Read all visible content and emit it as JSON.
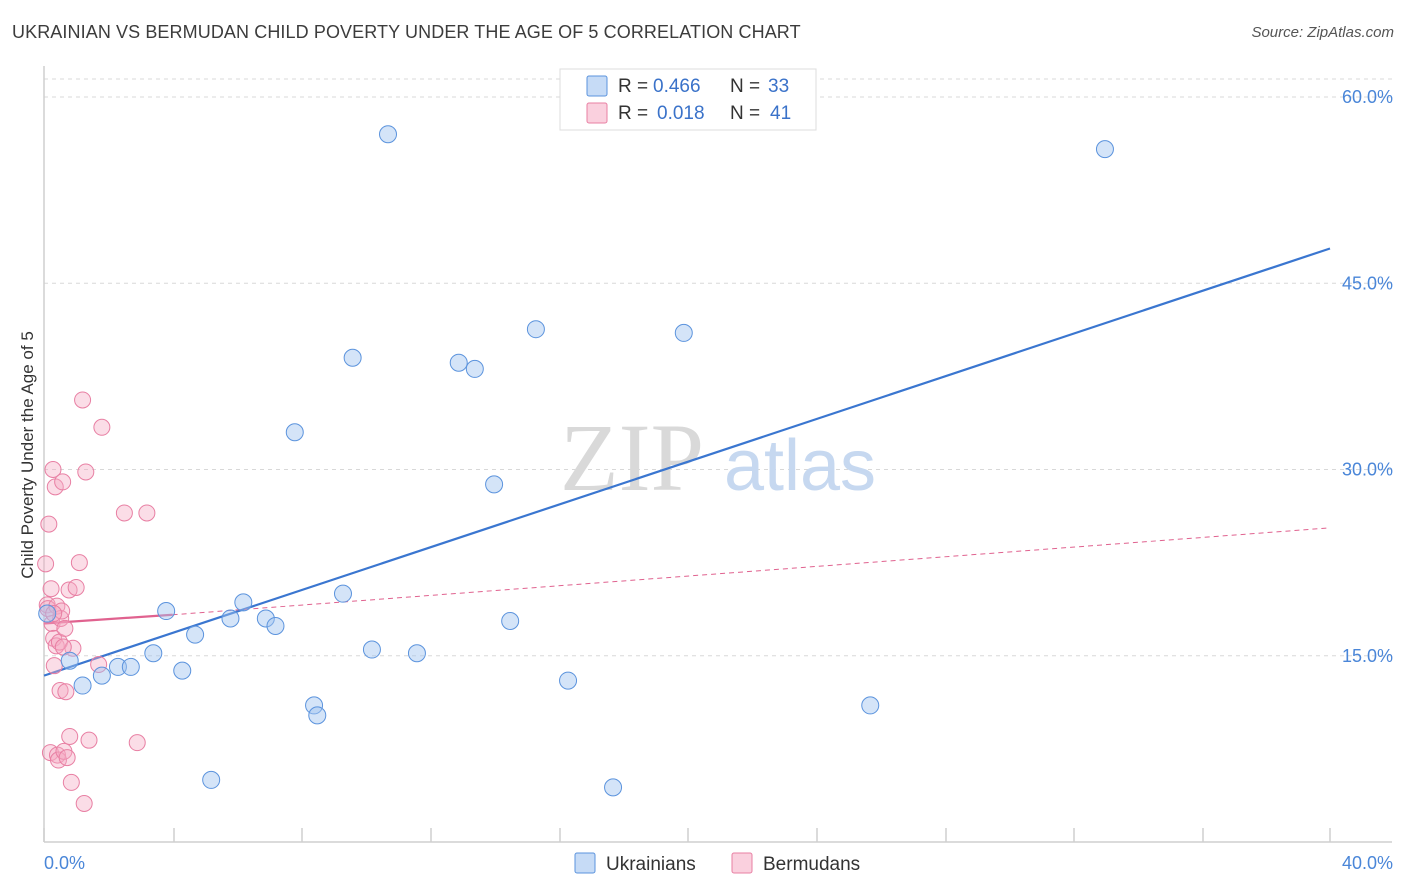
{
  "header": {
    "title": "UKRAINIAN VS BERMUDAN CHILD POVERTY UNDER THE AGE OF 5 CORRELATION CHART",
    "source": "Source: ZipAtlas.com"
  },
  "watermark": {
    "zip": "ZIP",
    "atlas": "atlas"
  },
  "colors": {
    "blue": "#5b93dd",
    "blue_fill": "rgba(160,195,240,0.45)",
    "blue_line": "#3a76d0",
    "pink": "#e87fa3",
    "pink_fill": "rgba(245,170,195,0.40)",
    "pink_line": "#e0628f",
    "grid": "#d8d8d8",
    "tick_text": "#4a86d8"
  },
  "legend": {
    "r_label": "R =",
    "n_label": "N =",
    "series": [
      {
        "name": "Ukrainians",
        "r": "0.466",
        "n": "33"
      },
      {
        "name": "Bermudans",
        "r": "0.018",
        "n": "41"
      }
    ]
  },
  "chart_data": {
    "type": "scatter",
    "title": "UKRAINIAN VS BERMUDAN CHILD POVERTY UNDER THE AGE OF 5 CORRELATION CHART",
    "xlabel": "",
    "ylabel": "Child Poverty Under the Age of 5",
    "xlim": [
      0,
      40
    ],
    "ylim": [
      0,
      60
    ],
    "x_ticks_labeled": [
      "0.0%",
      "40.0%"
    ],
    "y_ticks": [
      {
        "value": 15,
        "label": "15.0%"
      },
      {
        "value": 30,
        "label": "30.0%"
      },
      {
        "value": 45,
        "label": "45.0%"
      },
      {
        "value": 60,
        "label": "60.0%"
      }
    ],
    "series": [
      {
        "name": "Ukrainians",
        "color": "blue",
        "points": [
          [
            0.1,
            18.4
          ],
          [
            0.8,
            14.6
          ],
          [
            1.2,
            12.6
          ],
          [
            1.8,
            13.4
          ],
          [
            2.3,
            14.1
          ],
          [
            2.7,
            14.1
          ],
          [
            3.4,
            15.2
          ],
          [
            3.8,
            18.6
          ],
          [
            4.3,
            13.8
          ],
          [
            4.7,
            16.7
          ],
          [
            5.2,
            5.0
          ],
          [
            5.8,
            18.0
          ],
          [
            6.2,
            19.3
          ],
          [
            6.9,
            18.0
          ],
          [
            7.2,
            17.4
          ],
          [
            7.8,
            33.0
          ],
          [
            8.4,
            11.0
          ],
          [
            8.5,
            10.2
          ],
          [
            9.3,
            20.0
          ],
          [
            9.6,
            39.0
          ],
          [
            10.2,
            15.5
          ],
          [
            10.7,
            57.0
          ],
          [
            11.6,
            15.2
          ],
          [
            12.9,
            38.6
          ],
          [
            13.4,
            38.1
          ],
          [
            14.0,
            28.8
          ],
          [
            14.5,
            17.8
          ],
          [
            15.3,
            41.3
          ],
          [
            16.3,
            13.0
          ],
          [
            17.7,
            4.4
          ],
          [
            19.9,
            41.0
          ],
          [
            25.7,
            11.0
          ],
          [
            33.0,
            55.8
          ]
        ],
        "trend": {
          "x": [
            0,
            40
          ],
          "y": [
            13.4,
            47.8
          ],
          "style": "solid"
        }
      },
      {
        "name": "Bermudans",
        "color": "pink",
        "points": [
          [
            0.05,
            22.4
          ],
          [
            0.1,
            19.1
          ],
          [
            0.12,
            18.8
          ],
          [
            0.15,
            25.6
          ],
          [
            0.2,
            7.2
          ],
          [
            0.22,
            20.4
          ],
          [
            0.25,
            17.6
          ],
          [
            0.28,
            30.0
          ],
          [
            0.3,
            16.4
          ],
          [
            0.32,
            14.2
          ],
          [
            0.35,
            28.6
          ],
          [
            0.38,
            15.8
          ],
          [
            0.4,
            19.0
          ],
          [
            0.42,
            7.0
          ],
          [
            0.45,
            6.6
          ],
          [
            0.48,
            16.1
          ],
          [
            0.5,
            12.2
          ],
          [
            0.52,
            18.0
          ],
          [
            0.55,
            18.6
          ],
          [
            0.58,
            29.0
          ],
          [
            0.62,
            7.3
          ],
          [
            0.65,
            17.2
          ],
          [
            0.68,
            12.1
          ],
          [
            0.72,
            6.8
          ],
          [
            0.78,
            20.3
          ],
          [
            0.8,
            8.5
          ],
          [
            0.85,
            4.8
          ],
          [
            0.9,
            15.6
          ],
          [
            1.0,
            20.5
          ],
          [
            1.1,
            22.5
          ],
          [
            1.2,
            35.6
          ],
          [
            1.25,
            3.1
          ],
          [
            1.3,
            29.8
          ],
          [
            1.4,
            8.2
          ],
          [
            1.7,
            14.3
          ],
          [
            1.8,
            33.4
          ],
          [
            2.5,
            26.5
          ],
          [
            2.9,
            8.0
          ],
          [
            3.2,
            26.5
          ],
          [
            0.6,
            15.7
          ],
          [
            0.3,
            18.4
          ]
        ],
        "trend": {
          "x": [
            0,
            4
          ],
          "y": [
            17.6,
            18.3
          ],
          "style": "solid"
        },
        "trend_extension": {
          "x": [
            4,
            40
          ],
          "y": [
            18.3,
            25.3
          ],
          "style": "dashed"
        }
      }
    ]
  },
  "bottom_legend": [
    {
      "label": "Ukrainians"
    },
    {
      "label": "Bermudans"
    }
  ]
}
